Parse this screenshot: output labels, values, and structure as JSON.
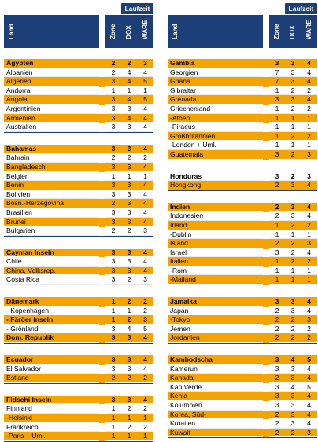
{
  "header": {
    "laufzeit": "Laufzeit",
    "land": "Land",
    "zone": "Zone",
    "dox": "DOX",
    "ware": "WARE"
  },
  "left": [
    [
      {
        "name": "Ägypten",
        "zone": "2",
        "dox": "2",
        "ware": "3",
        "style": "o",
        "bold": true
      },
      {
        "name": "Albanien",
        "zone": "2",
        "dox": "4",
        "ware": "4",
        "style": "w"
      },
      {
        "name": "Algerien",
        "zone": "3",
        "dox": "4",
        "ware": "5",
        "style": "o"
      },
      {
        "name": "Andorra",
        "zone": "1",
        "dox": "1",
        "ware": "1",
        "style": "w"
      },
      {
        "name": "Angola",
        "zone": "3",
        "dox": "4",
        "ware": "5",
        "style": "o"
      },
      {
        "name": "Argentinien",
        "zone": "3",
        "dox": "3",
        "ware": "4",
        "style": "w"
      },
      {
        "name": "Armenien",
        "zone": "3",
        "dox": "4",
        "ware": "4",
        "style": "o"
      },
      {
        "name": "Australien",
        "zone": "3",
        "dox": "3",
        "ware": "4",
        "style": "w"
      }
    ],
    [
      {
        "name": "Bahamas",
        "zone": "3",
        "dox": "3",
        "ware": "4",
        "style": "o",
        "bold": true
      },
      {
        "name": "Bahrain",
        "zone": "2",
        "dox": "2",
        "ware": "2",
        "style": "w"
      },
      {
        "name": "Bangladesch",
        "zone": "3",
        "dox": "3",
        "ware": "4",
        "style": "o"
      },
      {
        "name": "Belgien",
        "zone": "1",
        "dox": "1",
        "ware": "1",
        "style": "w"
      },
      {
        "name": "Benin",
        "zone": "3",
        "dox": "3",
        "ware": "4",
        "style": "o"
      },
      {
        "name": "Bolivien",
        "zone": "3",
        "dox": "3",
        "ware": "4",
        "style": "w"
      },
      {
        "name": "Bosn.-Herzegovina",
        "zone": "2",
        "dox": "3",
        "ware": "4",
        "style": "o"
      },
      {
        "name": "Brasilien",
        "zone": "3",
        "dox": "3",
        "ware": "4",
        "style": "w"
      },
      {
        "name": "Brunei",
        "zone": "3",
        "dox": "3",
        "ware": "4",
        "style": "o"
      },
      {
        "name": "Bulgarien",
        "zone": "2",
        "dox": "2",
        "ware": "3",
        "style": "w"
      }
    ],
    [
      {
        "name": "Cayman Inseln",
        "zone": "3",
        "dox": "3",
        "ware": "4",
        "style": "o",
        "bold": true
      },
      {
        "name": "Chile",
        "zone": "3",
        "dox": "3",
        "ware": "4",
        "style": "w"
      },
      {
        "name": "China, Volksrep.",
        "zone": "3",
        "dox": "3",
        "ware": "4",
        "style": "o"
      },
      {
        "name": "Costa Rica",
        "zone": "3",
        "dox": "2",
        "ware": "3",
        "style": "w"
      }
    ],
    [
      {
        "name": "Dänemark",
        "zone": "1",
        "dox": "2",
        "ware": "2",
        "style": "o",
        "bold": true
      },
      {
        "name": "- Kopenhagen",
        "zone": "1",
        "dox": "1",
        "ware": "2",
        "style": "w"
      },
      {
        "name": "- Färöer Inseln",
        "zone": "1",
        "dox": "2",
        "ware": "3",
        "style": "o",
        "bold": true
      },
      {
        "name": "- Grönland",
        "zone": "3",
        "dox": "4",
        "ware": "5",
        "style": "w"
      },
      {
        "name": "Dom. Republik",
        "zone": "3",
        "dox": "3",
        "ware": "4",
        "style": "o",
        "bold": true
      }
    ],
    [
      {
        "name": "Ecuador",
        "zone": "3",
        "dox": "3",
        "ware": "4",
        "style": "o",
        "bold": true
      },
      {
        "name": "El Salvador",
        "zone": "3",
        "dox": "3",
        "ware": "4",
        "style": "w"
      },
      {
        "name": "Estland",
        "zone": "2",
        "dox": "2",
        "ware": "2",
        "style": "o"
      }
    ],
    [
      {
        "name": "Fidschi Inseln",
        "zone": "3",
        "dox": "3",
        "ware": "4",
        "style": "o",
        "bold": true
      },
      {
        "name": "Finnland",
        "zone": "1",
        "dox": "2",
        "ware": "2",
        "style": "w"
      },
      {
        "name": "-Helsinki",
        "zone": "1",
        "dox": "1",
        "ware": "1",
        "style": "o"
      },
      {
        "name": "Frankreich",
        "zone": "1",
        "dox": "2",
        "ware": "2",
        "style": "w"
      },
      {
        "name": "-Paris + Uml.",
        "zone": "1",
        "dox": "1",
        "ware": "1",
        "style": "o"
      }
    ]
  ],
  "right": [
    [
      {
        "name": "Gambia",
        "zone": "3",
        "dox": "3",
        "ware": "4",
        "style": "o",
        "bold": true
      },
      {
        "name": "Georgien",
        "zone": "7",
        "dox": "3",
        "ware": "4",
        "style": "w"
      },
      {
        "name": "Ghana",
        "zone": "7",
        "dox": "3",
        "ware": "4",
        "style": "o"
      },
      {
        "name": "Gibraltar",
        "zone": "1",
        "dox": "2",
        "ware": "2",
        "style": "w"
      },
      {
        "name": "Grenada",
        "zone": "3",
        "dox": "3",
        "ware": "4",
        "style": "o"
      },
      {
        "name": "Griechenland",
        "zone": "1",
        "dox": "2",
        "ware": "2",
        "style": "w"
      },
      {
        "name": "-Athen",
        "zone": "1",
        "dox": "1",
        "ware": "1",
        "style": "o"
      },
      {
        "name": "-Piraeus",
        "zone": "1",
        "dox": "1",
        "ware": "1",
        "style": "w"
      },
      {
        "name": "Großbritannien",
        "zone": "1",
        "dox": "2",
        "ware": "2",
        "style": "o"
      },
      {
        "name": "-London + Uml.",
        "zone": "1",
        "dox": "1",
        "ware": "1",
        "style": "w"
      },
      {
        "name": "Guatemala",
        "zone": "3",
        "dox": "2",
        "ware": "3",
        "style": "o"
      }
    ],
    [
      {
        "name": "Honduras",
        "zone": "3",
        "dox": "2",
        "ware": "3",
        "style": "w",
        "bold": true
      },
      {
        "name": "Hongkong",
        "zone": "2",
        "dox": "3",
        "ware": "4",
        "style": "o"
      }
    ],
    [
      {
        "name": "Indien",
        "zone": "2",
        "dox": "3",
        "ware": "4",
        "style": "o",
        "bold": true
      },
      {
        "name": "Indonesien",
        "zone": "2",
        "dox": "3",
        "ware": "4",
        "style": "w"
      },
      {
        "name": "Irland",
        "zone": "1",
        "dox": "2",
        "ware": "2",
        "style": "o"
      },
      {
        "name": "-Dublin",
        "zone": "1",
        "dox": "1",
        "ware": "1",
        "style": "w"
      },
      {
        "name": "Island",
        "zone": "2",
        "dox": "2",
        "ware": "3",
        "style": "o"
      },
      {
        "name": "Israel",
        "zone": "3",
        "dox": "2",
        "ware": "4",
        "style": "w"
      },
      {
        "name": "Italien",
        "zone": "1",
        "dox": "2",
        "ware": "2",
        "style": "o"
      },
      {
        "name": "-Rom",
        "zone": "1",
        "dox": "1",
        "ware": "1",
        "style": "w"
      },
      {
        "name": "-Mailand",
        "zone": "1",
        "dox": "1",
        "ware": "1",
        "style": "o"
      }
    ],
    [
      {
        "name": "Jamaika",
        "zone": "3",
        "dox": "3",
        "ware": "4",
        "style": "o",
        "bold": true
      },
      {
        "name": "Japan",
        "zone": "2",
        "dox": "3",
        "ware": "4",
        "style": "w"
      },
      {
        "name": "-Tokyo",
        "zone": "2",
        "dox": "2",
        "ware": "3",
        "style": "o"
      },
      {
        "name": "Jemen",
        "zone": "2",
        "dox": "2",
        "ware": "2",
        "style": "w"
      },
      {
        "name": "Jordanien",
        "zone": "2",
        "dox": "2",
        "ware": "2",
        "style": "o"
      }
    ],
    [
      {
        "name": "Kambodscha",
        "zone": "3",
        "dox": "4",
        "ware": "5",
        "style": "o",
        "bold": true
      },
      {
        "name": "Kamerun",
        "zone": "3",
        "dox": "3",
        "ware": "4",
        "style": "w"
      },
      {
        "name": "Kanada",
        "zone": "2",
        "dox": "3",
        "ware": "4",
        "style": "o"
      },
      {
        "name": "Kap Verde",
        "zone": "3",
        "dox": "4",
        "ware": "5",
        "style": "w"
      },
      {
        "name": "Kenia",
        "zone": "3",
        "dox": "3",
        "ware": "4",
        "style": "o"
      },
      {
        "name": "Kolumbien",
        "zone": "3",
        "dox": "3",
        "ware": "4",
        "style": "w"
      },
      {
        "name": "Korea, Süd-",
        "zone": "2",
        "dox": "3",
        "ware": "4",
        "style": "o"
      },
      {
        "name": "Kroatien",
        "zone": "2",
        "dox": "3",
        "ware": "4",
        "style": "w"
      },
      {
        "name": "Kuwait",
        "zone": "2",
        "dox": "2",
        "ware": "3",
        "style": "o"
      }
    ]
  ]
}
